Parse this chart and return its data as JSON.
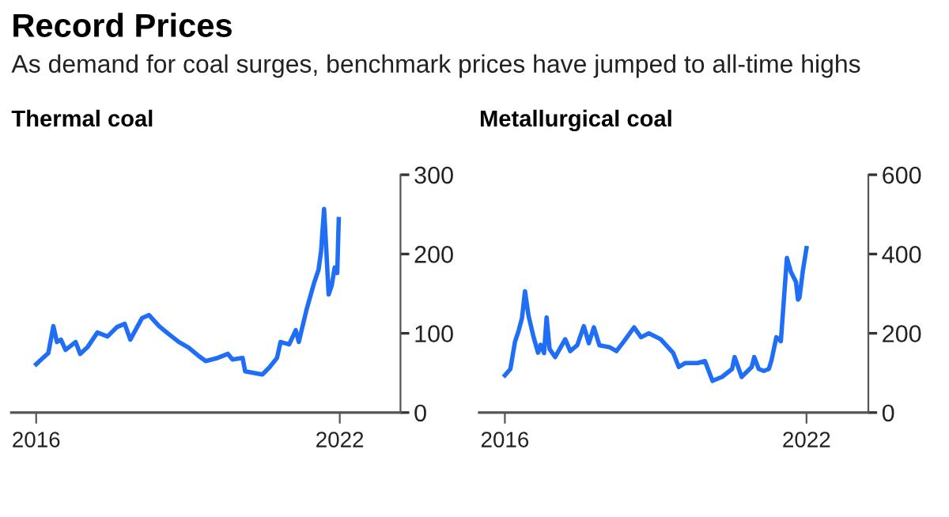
{
  "chart_data": [
    {
      "type": "line",
      "title": "Record Prices",
      "subtitle": "As demand for coal surges, benchmark prices have jumped to all-time highs",
      "xlabel": "Thermal coal",
      "xlim": [
        2015.51,
        2023.2
      ],
      "xticks": [
        2016,
        2022
      ],
      "ylim": [
        0,
        300
      ],
      "yticks": [
        0,
        100,
        200,
        300
      ],
      "series": [
        {
          "color": "#1f6ef5",
          "x": [
            2016.0,
            2016.1,
            2016.24,
            2016.34,
            2016.41,
            2016.49,
            2016.58,
            2016.78,
            2016.87,
            2017.02,
            2017.21,
            2017.41,
            2017.6,
            2017.75,
            2017.86,
            2018.09,
            2018.23,
            2018.43,
            2018.62,
            2018.82,
            2019.01,
            2019.2,
            2019.35,
            2019.59,
            2019.79,
            2019.88,
            2020.08,
            2020.13,
            2020.47,
            2020.61,
            2020.76,
            2020.83,
            2021.0,
            2021.13,
            2021.19,
            2021.34,
            2021.49,
            2021.58,
            2021.63,
            2021.69,
            2021.73,
            2021.78,
            2021.84,
            2021.9,
            2021.95,
            2021.98
          ],
          "values": [
            61,
            67,
            75,
            109,
            89,
            92,
            79,
            89,
            74,
            83,
            101,
            96,
            108,
            112,
            92,
            119,
            123,
            109,
            99,
            89,
            82,
            72,
            65,
            69,
            74,
            67,
            69,
            52,
            48,
            57,
            69,
            89,
            86,
            104,
            89,
            129,
            163,
            180,
            203,
            257,
            210,
            149,
            160,
            183,
            176,
            244
          ]
        }
      ]
    },
    {
      "type": "line",
      "xlabel": "Metallurgical coal",
      "xlim": [
        2015.49,
        2023.23
      ],
      "xticks": [
        2016,
        2022
      ],
      "ylim": [
        0,
        600
      ],
      "yticks": [
        0,
        200,
        400,
        600
      ],
      "series": [
        {
          "color": "#1f6ef5",
          "x": [
            2016.0,
            2016.11,
            2016.2,
            2016.27,
            2016.34,
            2016.4,
            2016.47,
            2016.57,
            2016.66,
            2016.71,
            2016.78,
            2016.83,
            2016.89,
            2017.0,
            2017.2,
            2017.3,
            2017.44,
            2017.57,
            2017.67,
            2017.77,
            2017.88,
            2018.08,
            2018.22,
            2018.37,
            2018.57,
            2018.71,
            2018.86,
            2019.1,
            2019.35,
            2019.46,
            2019.59,
            2019.83,
            2019.98,
            2020.13,
            2020.32,
            2020.52,
            2020.57,
            2020.71,
            2020.91,
            2020.96,
            2021.05,
            2021.15,
            2021.25,
            2021.3,
            2021.4,
            2021.49,
            2021.61,
            2021.69,
            2021.79,
            2021.83,
            2021.86,
            2021.93,
            2022.0
          ],
          "values": [
            94,
            110,
            178,
            205,
            238,
            306,
            245,
            191,
            151,
            171,
            150,
            240,
            160,
            140,
            185,
            155,
            170,
            218,
            175,
            215,
            170,
            165,
            155,
            180,
            215,
            190,
            200,
            185,
            150,
            115,
            125,
            125,
            130,
            80,
            90,
            110,
            140,
            90,
            115,
            140,
            110,
            105,
            110,
            130,
            190,
            180,
            390,
            355,
            330,
            285,
            290,
            360,
            415
          ]
        }
      ]
    }
  ]
}
